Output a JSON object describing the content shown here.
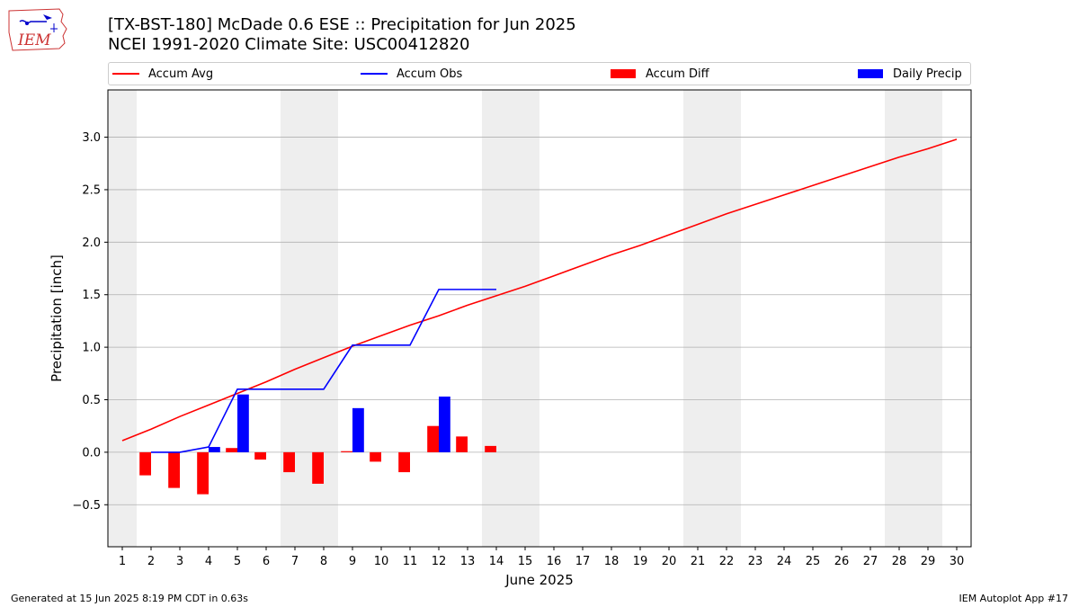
{
  "header": {
    "title_line1": "[TX-BST-180] McDade 0.6 ESE :: Precipitation for Jun 2025",
    "title_line2": "NCEI 1991-2020 Climate Site: USC00412820"
  },
  "logo": {
    "text": "IEM"
  },
  "footer": {
    "left": "Generated at 15 Jun 2025 8:19 PM CDT in 0.63s",
    "right": "IEM Autoplot App #17"
  },
  "colors": {
    "accum_avg": "#ff0000",
    "accum_obs": "#0000ff",
    "accum_diff": "#ff0000",
    "daily_precip": "#0000ff",
    "weekend_shade": "#eeeeee",
    "grid": "#b0b0b0"
  },
  "chart_data": {
    "type": "bar",
    "xlabel": "June 2025",
    "ylabel": "Precipitation [inch]",
    "xlim": [
      0.5,
      30.5
    ],
    "ylim": [
      -0.9,
      3.45
    ],
    "yticks": [
      -0.5,
      0.0,
      0.5,
      1.0,
      1.5,
      2.0,
      2.5,
      3.0
    ],
    "ytick_labels": [
      "−0.5",
      "0.0",
      "0.5",
      "1.0",
      "1.5",
      "2.0",
      "2.5",
      "3.0"
    ],
    "xticks": [
      1,
      2,
      3,
      4,
      5,
      6,
      7,
      8,
      9,
      10,
      11,
      12,
      13,
      14,
      15,
      16,
      17,
      18,
      19,
      20,
      21,
      22,
      23,
      24,
      25,
      26,
      27,
      28,
      29,
      30
    ],
    "grid": "horizontal",
    "legend_position": "top",
    "weekend_days": [
      1,
      7,
      8,
      14,
      15,
      21,
      22,
      28,
      29
    ],
    "series": [
      {
        "name": "Accum Avg",
        "kind": "line",
        "x": [
          1,
          2,
          3,
          4,
          5,
          6,
          7,
          8,
          9,
          10,
          11,
          12,
          13,
          14,
          15,
          16,
          17,
          18,
          19,
          20,
          21,
          22,
          23,
          24,
          25,
          26,
          27,
          28,
          29,
          30
        ],
        "values": [
          0.11,
          0.22,
          0.34,
          0.45,
          0.56,
          0.67,
          0.79,
          0.9,
          1.01,
          1.11,
          1.21,
          1.3,
          1.4,
          1.49,
          1.58,
          1.68,
          1.78,
          1.88,
          1.97,
          2.07,
          2.17,
          2.27,
          2.36,
          2.45,
          2.54,
          2.63,
          2.72,
          2.81,
          2.89,
          2.98
        ]
      },
      {
        "name": "Accum Obs",
        "kind": "line",
        "x": [
          2,
          3,
          4,
          5,
          6,
          7,
          8,
          9,
          10,
          11,
          12,
          13,
          14
        ],
        "values": [
          0.0,
          0.0,
          0.05,
          0.6,
          0.6,
          0.6,
          0.6,
          1.02,
          1.02,
          1.02,
          1.55,
          1.55,
          1.55
        ]
      },
      {
        "name": "Accum Diff",
        "kind": "bar",
        "x": [
          2,
          3,
          4,
          5,
          6,
          7,
          8,
          9,
          10,
          11,
          12,
          13,
          14
        ],
        "values": [
          -0.22,
          -0.34,
          -0.4,
          0.04,
          -0.07,
          -0.19,
          -0.3,
          0.01,
          -0.09,
          -0.19,
          0.25,
          0.15,
          0.06
        ]
      },
      {
        "name": "Daily Precip",
        "kind": "bar",
        "x": [
          4,
          5,
          9,
          12
        ],
        "values": [
          0.05,
          0.55,
          0.42,
          0.53
        ]
      }
    ]
  }
}
